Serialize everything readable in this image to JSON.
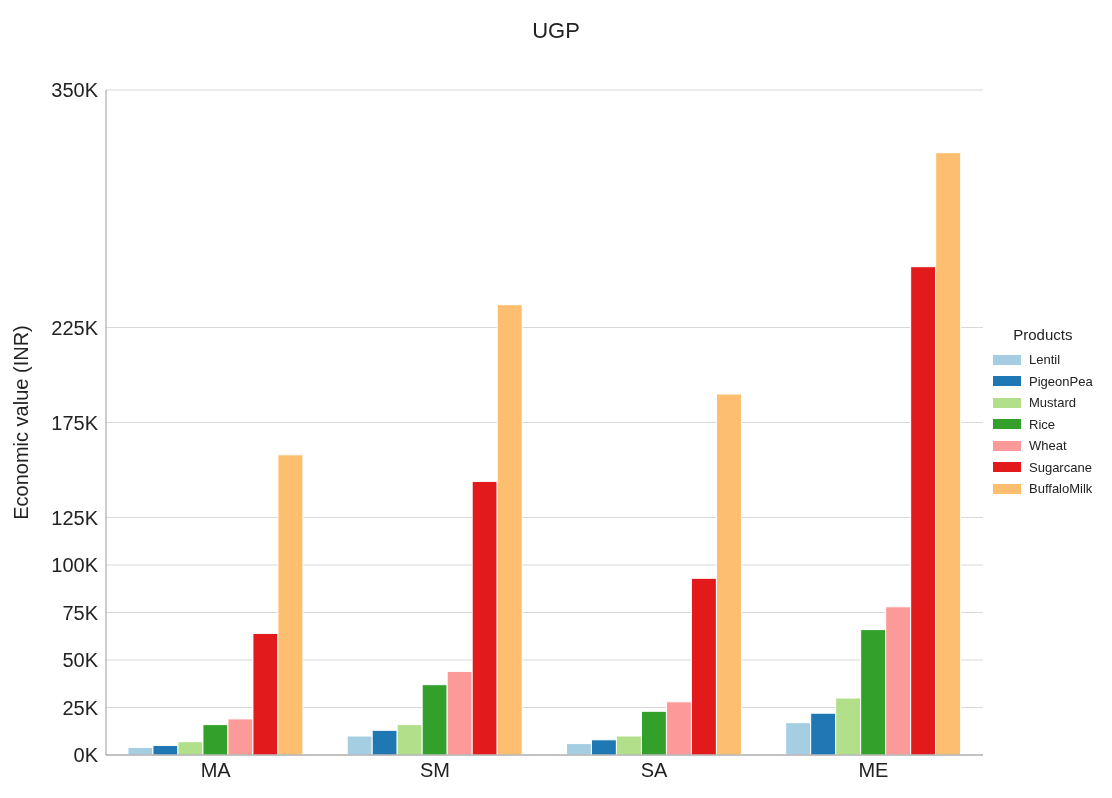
{
  "chart_data": {
    "type": "bar",
    "title": "UGP",
    "ylabel": "Economic value (INR)",
    "legend_title": "Products",
    "categories": [
      "MA",
      "SM",
      "SA",
      "ME"
    ],
    "series": [
      {
        "name": "Lentil",
        "color": "#a6cee3",
        "values": [
          4000,
          10000,
          6000,
          17000
        ]
      },
      {
        "name": "PigeonPea",
        "color": "#1f78b4",
        "values": [
          5000,
          13000,
          8000,
          22000
        ]
      },
      {
        "name": "Mustard",
        "color": "#b2df8a",
        "values": [
          7000,
          16000,
          10000,
          30000
        ]
      },
      {
        "name": "Rice",
        "color": "#33a02c",
        "values": [
          16000,
          37000,
          23000,
          66000
        ]
      },
      {
        "name": "Wheat",
        "color": "#fb9a99",
        "values": [
          19000,
          44000,
          28000,
          78000
        ]
      },
      {
        "name": "Sugarcane",
        "color": "#e31a1c",
        "values": [
          64000,
          144000,
          93000,
          257000
        ]
      },
      {
        "name": "BuffaloMilk",
        "color": "#fdbf6f",
        "values": [
          158000,
          237000,
          190000,
          317000
        ]
      }
    ],
    "ylim": [
      0,
      350000
    ],
    "yticks": [
      {
        "value": 0,
        "label": "0K"
      },
      {
        "value": 25000,
        "label": "25K"
      },
      {
        "value": 50000,
        "label": "50K"
      },
      {
        "value": 75000,
        "label": "75K"
      },
      {
        "value": 100000,
        "label": "100K"
      },
      {
        "value": 125000,
        "label": "125K"
      },
      {
        "value": 175000,
        "label": "175K"
      },
      {
        "value": 225000,
        "label": "225K"
      },
      {
        "value": 350000,
        "label": "350K"
      }
    ],
    "grid": "y",
    "legend": "right"
  }
}
